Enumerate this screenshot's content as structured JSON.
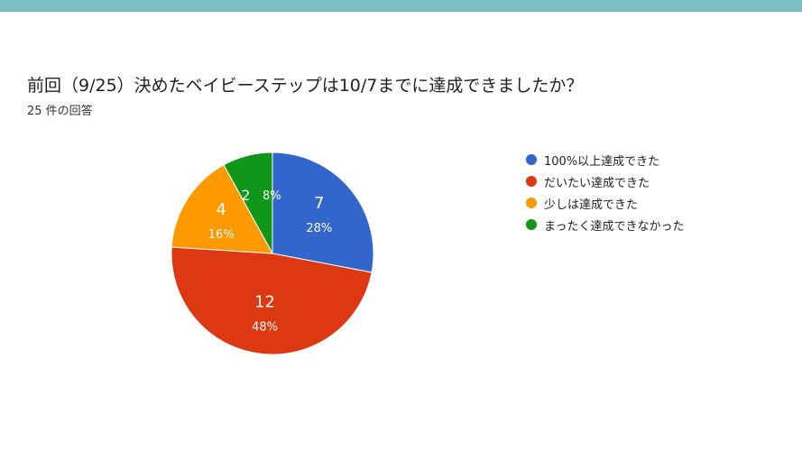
{
  "colors": {
    "top_bar": "#7ABFC0",
    "slice_stroke": "#ffffff"
  },
  "header": {
    "title": "前回（9/25）決めたベイビーステップは10/7までに達成できましたか？",
    "subtitle": "25 件の回答"
  },
  "chart_data": {
    "type": "pie",
    "title": "前回（9/25）決めたベイビーステップは10/7までに達成できましたか？",
    "total": 25,
    "start_angle_deg": 90,
    "direction": "clockwise",
    "legend_position": "right",
    "slices": [
      {
        "label": "100%以上達成できた",
        "value": 7,
        "percent": "28%",
        "color": "#3366CC"
      },
      {
        "label": "だいたい達成できた",
        "value": 12,
        "percent": "48%",
        "color": "#DC3912"
      },
      {
        "label": "少しは達成できた",
        "value": 4,
        "percent": "16%",
        "color": "#FF9900"
      },
      {
        "label": "まったく達成できなかった",
        "value": 2,
        "percent": "8%",
        "color": "#109618"
      }
    ]
  }
}
